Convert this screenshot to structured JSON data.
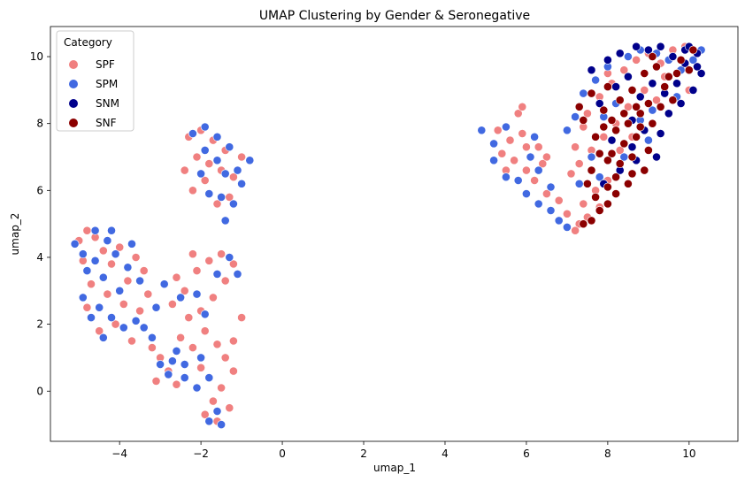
{
  "chart_data": {
    "type": "scatter",
    "title": "UMAP Clustering by Gender & Seronegative",
    "xlabel": "umap_1",
    "ylabel": "umap_2",
    "xlim": [
      -5.7,
      11.2
    ],
    "ylim": [
      -1.5,
      10.9
    ],
    "xticks": [
      -4,
      -2,
      0,
      2,
      4,
      6,
      8,
      10
    ],
    "yticks": [
      0,
      2,
      4,
      6,
      8,
      10
    ],
    "grid": false,
    "legend": {
      "title": "Category",
      "placement": "top-left"
    },
    "series": [
      {
        "name": "SPF",
        "color": "#F08080",
        "points": [
          [
            -5.0,
            4.5
          ],
          [
            -4.8,
            4.8
          ],
          [
            -4.6,
            4.6
          ],
          [
            -4.4,
            4.2
          ],
          [
            -4.0,
            4.3
          ],
          [
            -3.6,
            4.0
          ],
          [
            -3.4,
            3.6
          ],
          [
            -4.2,
            3.8
          ],
          [
            -4.7,
            3.2
          ],
          [
            -4.3,
            2.9
          ],
          [
            -3.9,
            2.6
          ],
          [
            -3.5,
            2.4
          ],
          [
            -4.1,
            2.0
          ],
          [
            -4.5,
            1.8
          ],
          [
            -3.7,
            1.5
          ],
          [
            -3.2,
            1.3
          ],
          [
            -3.0,
            1.0
          ],
          [
            -2.8,
            0.6
          ],
          [
            -2.6,
            0.2
          ],
          [
            -3.1,
            0.3
          ],
          [
            -4.8,
            2.5
          ],
          [
            -4.9,
            3.9
          ],
          [
            -3.3,
            2.9
          ],
          [
            -3.8,
            3.3
          ],
          [
            -2.6,
            3.4
          ],
          [
            -2.4,
            3.0
          ],
          [
            -2.1,
            3.6
          ],
          [
            -1.8,
            3.9
          ],
          [
            -1.5,
            4.1
          ],
          [
            -1.2,
            3.8
          ],
          [
            -1.4,
            3.3
          ],
          [
            -1.7,
            2.8
          ],
          [
            -2.0,
            2.4
          ],
          [
            -2.3,
            2.2
          ],
          [
            -1.9,
            1.8
          ],
          [
            -1.6,
            1.4
          ],
          [
            -1.4,
            1.0
          ],
          [
            -1.2,
            0.6
          ],
          [
            -1.5,
            0.1
          ],
          [
            -1.7,
            -0.3
          ],
          [
            -1.9,
            -0.7
          ],
          [
            -1.6,
            -0.9
          ],
          [
            -1.3,
            -0.5
          ],
          [
            -2.2,
            1.3
          ],
          [
            -2.5,
            1.6
          ],
          [
            -2.0,
            0.7
          ],
          [
            -1.0,
            2.2
          ],
          [
            -1.2,
            1.5
          ],
          [
            -2.7,
            2.6
          ],
          [
            -2.2,
            4.1
          ],
          [
            -2.3,
            7.6
          ],
          [
            -2.0,
            7.8
          ],
          [
            -1.7,
            7.5
          ],
          [
            -1.4,
            7.2
          ],
          [
            -2.1,
            7.0
          ],
          [
            -1.8,
            6.8
          ],
          [
            -1.5,
            6.6
          ],
          [
            -1.2,
            6.4
          ],
          [
            -2.4,
            6.6
          ],
          [
            -1.9,
            6.3
          ],
          [
            -1.3,
            5.8
          ],
          [
            -1.6,
            5.6
          ],
          [
            -1.0,
            7.0
          ],
          [
            -2.2,
            6.0
          ],
          [
            5.3,
            7.8
          ],
          [
            5.6,
            7.5
          ],
          [
            5.9,
            7.7
          ],
          [
            5.4,
            7.1
          ],
          [
            5.7,
            6.9
          ],
          [
            6.0,
            6.6
          ],
          [
            5.5,
            6.6
          ],
          [
            6.3,
            7.3
          ],
          [
            6.5,
            7.0
          ],
          [
            6.2,
            6.3
          ],
          [
            6.5,
            5.9
          ],
          [
            6.8,
            5.7
          ],
          [
            6.4,
            6.8
          ],
          [
            6.0,
            7.3
          ],
          [
            5.8,
            8.3
          ],
          [
            5.9,
            8.5
          ],
          [
            7.0,
            5.3
          ],
          [
            7.3,
            5.0
          ],
          [
            7.5,
            5.2
          ],
          [
            7.8,
            5.5
          ],
          [
            7.2,
            4.8
          ],
          [
            7.7,
            6.0
          ],
          [
            8.0,
            6.3
          ],
          [
            7.4,
            5.6
          ],
          [
            7.1,
            6.5
          ],
          [
            7.3,
            6.8
          ],
          [
            7.6,
            7.2
          ],
          [
            7.9,
            7.6
          ],
          [
            8.2,
            8.0
          ],
          [
            8.5,
            8.5
          ],
          [
            7.5,
            8.3
          ],
          [
            7.8,
            8.8
          ],
          [
            8.1,
            9.2
          ],
          [
            8.4,
            9.6
          ],
          [
            8.7,
            9.9
          ],
          [
            9.0,
            10.1
          ],
          [
            9.3,
            9.8
          ],
          [
            9.6,
            10.2
          ],
          [
            9.9,
            10.3
          ],
          [
            8.9,
            9.0
          ],
          [
            9.2,
            8.7
          ],
          [
            8.3,
            7.2
          ],
          [
            8.6,
            7.6
          ],
          [
            7.4,
            7.9
          ],
          [
            8.0,
            9.5
          ],
          [
            9.4,
            9.4
          ],
          [
            10.0,
            9.0
          ],
          [
            7.2,
            7.3
          ]
        ]
      },
      {
        "name": "SPM",
        "color": "#4169E1",
        "points": [
          [
            -5.1,
            4.4
          ],
          [
            -4.9,
            4.1
          ],
          [
            -4.6,
            3.9
          ],
          [
            -4.3,
            4.5
          ],
          [
            -4.1,
            4.1
          ],
          [
            -3.8,
            3.7
          ],
          [
            -4.4,
            3.4
          ],
          [
            -4.8,
            3.6
          ],
          [
            -4.9,
            2.8
          ],
          [
            -4.5,
            2.5
          ],
          [
            -4.2,
            2.2
          ],
          [
            -3.9,
            1.9
          ],
          [
            -3.6,
            2.1
          ],
          [
            -4.7,
            2.2
          ],
          [
            -4.4,
            1.6
          ],
          [
            -3.4,
            1.9
          ],
          [
            -3.2,
            1.6
          ],
          [
            -3.0,
            0.8
          ],
          [
            -2.8,
            0.5
          ],
          [
            -2.4,
            0.4
          ],
          [
            -2.7,
            0.9
          ],
          [
            -3.5,
            3.3
          ],
          [
            -4.0,
            3.0
          ],
          [
            -3.1,
            2.5
          ],
          [
            -2.9,
            3.2
          ],
          [
            -2.5,
            2.8
          ],
          [
            -2.1,
            2.9
          ],
          [
            -1.6,
            3.5
          ],
          [
            -1.3,
            4.0
          ],
          [
            -1.1,
            3.5
          ],
          [
            -2.0,
            1.0
          ],
          [
            -1.8,
            0.4
          ],
          [
            -1.6,
            -0.6
          ],
          [
            -1.5,
            -1.0
          ],
          [
            -1.8,
            -0.9
          ],
          [
            -2.1,
            0.1
          ],
          [
            -2.4,
            0.8
          ],
          [
            -2.6,
            1.2
          ],
          [
            -1.9,
            2.3
          ],
          [
            -4.6,
            4.8
          ],
          [
            -4.2,
            4.8
          ],
          [
            -3.7,
            4.4
          ],
          [
            -2.2,
            7.7
          ],
          [
            -1.9,
            7.9
          ],
          [
            -1.6,
            7.6
          ],
          [
            -1.3,
            7.3
          ],
          [
            -1.9,
            7.2
          ],
          [
            -1.6,
            6.9
          ],
          [
            -1.4,
            6.5
          ],
          [
            -1.1,
            6.6
          ],
          [
            -2.0,
            6.5
          ],
          [
            -1.8,
            5.9
          ],
          [
            -1.5,
            5.8
          ],
          [
            -1.2,
            5.6
          ],
          [
            -1.4,
            5.1
          ],
          [
            -0.8,
            6.9
          ],
          [
            -1.0,
            6.2
          ],
          [
            4.9,
            7.8
          ],
          [
            5.2,
            7.4
          ],
          [
            5.5,
            7.9
          ],
          [
            5.2,
            6.9
          ],
          [
            5.5,
            6.4
          ],
          [
            5.8,
            6.3
          ],
          [
            6.1,
            7.0
          ],
          [
            6.3,
            6.6
          ],
          [
            6.0,
            5.9
          ],
          [
            6.3,
            5.6
          ],
          [
            6.6,
            5.4
          ],
          [
            6.6,
            6.1
          ],
          [
            6.2,
            7.6
          ],
          [
            6.8,
            5.1
          ],
          [
            7.0,
            4.9
          ],
          [
            7.3,
            6.2
          ],
          [
            7.0,
            7.8
          ],
          [
            7.2,
            8.2
          ],
          [
            7.4,
            8.9
          ],
          [
            7.7,
            9.3
          ],
          [
            8.0,
            9.7
          ],
          [
            8.5,
            10.0
          ],
          [
            8.8,
            10.2
          ],
          [
            9.2,
            10.1
          ],
          [
            9.5,
            9.9
          ],
          [
            9.8,
            9.6
          ],
          [
            8.2,
            8.6
          ],
          [
            7.9,
            8.2
          ],
          [
            8.8,
            8.1
          ],
          [
            9.1,
            8.4
          ],
          [
            10.1,
            9.9
          ],
          [
            10.3,
            10.2
          ],
          [
            9.7,
            8.8
          ],
          [
            7.6,
            7.0
          ],
          [
            8.4,
            7.0
          ],
          [
            7.8,
            6.4
          ],
          [
            9.0,
            7.5
          ]
        ]
      },
      {
        "name": "SNM",
        "color": "#00008B",
        "points": [
          [
            7.6,
            9.6
          ],
          [
            8.0,
            9.9
          ],
          [
            8.3,
            10.1
          ],
          [
            8.7,
            10.3
          ],
          [
            9.0,
            10.2
          ],
          [
            9.3,
            10.3
          ],
          [
            9.6,
            10.0
          ],
          [
            9.9,
            9.8
          ],
          [
            10.2,
            10.1
          ],
          [
            10.3,
            9.5
          ],
          [
            9.7,
            9.2
          ],
          [
            9.4,
            8.9
          ],
          [
            9.1,
            9.2
          ],
          [
            8.8,
            8.8
          ],
          [
            8.5,
            9.4
          ],
          [
            8.2,
            9.1
          ],
          [
            9.5,
            8.3
          ],
          [
            9.8,
            8.6
          ],
          [
            10.1,
            9.0
          ],
          [
            8.9,
            7.8
          ],
          [
            8.6,
            7.3
          ],
          [
            9.2,
            7.0
          ],
          [
            8.3,
            6.6
          ],
          [
            7.9,
            6.2
          ],
          [
            8.6,
            8.1
          ],
          [
            9.9,
            10.2
          ],
          [
            10.0,
            10.3
          ],
          [
            7.8,
            8.6
          ],
          [
            8.1,
            7.5
          ],
          [
            9.3,
            7.7
          ],
          [
            8.7,
            6.9
          ],
          [
            10.2,
            9.7
          ]
        ]
      },
      {
        "name": "SNF",
        "color": "#8B0000",
        "points": [
          [
            7.4,
            5.0
          ],
          [
            7.6,
            5.1
          ],
          [
            7.8,
            5.4
          ],
          [
            8.0,
            5.6
          ],
          [
            7.7,
            5.8
          ],
          [
            8.0,
            6.1
          ],
          [
            8.2,
            6.4
          ],
          [
            8.5,
            6.2
          ],
          [
            8.3,
            6.8
          ],
          [
            8.6,
            7.0
          ],
          [
            8.9,
            6.6
          ],
          [
            8.1,
            7.1
          ],
          [
            8.4,
            7.4
          ],
          [
            8.7,
            7.6
          ],
          [
            9.0,
            7.2
          ],
          [
            8.2,
            7.8
          ],
          [
            8.5,
            8.0
          ],
          [
            8.8,
            8.3
          ],
          [
            9.1,
            8.0
          ],
          [
            7.9,
            8.4
          ],
          [
            8.3,
            8.7
          ],
          [
            8.6,
            9.0
          ],
          [
            9.0,
            8.6
          ],
          [
            9.3,
            8.5
          ],
          [
            7.6,
            8.9
          ],
          [
            8.0,
            9.1
          ],
          [
            8.9,
            9.5
          ],
          [
            9.2,
            9.7
          ],
          [
            9.5,
            9.4
          ],
          [
            9.8,
            9.9
          ],
          [
            10.1,
            10.2
          ],
          [
            7.4,
            8.1
          ],
          [
            7.7,
            7.6
          ],
          [
            8.0,
            6.9
          ],
          [
            7.6,
            6.6
          ],
          [
            8.8,
            7.9
          ],
          [
            9.4,
            9.1
          ],
          [
            9.7,
            9.5
          ],
          [
            7.3,
            8.5
          ],
          [
            9.1,
            10.0
          ],
          [
            8.4,
            8.3
          ],
          [
            8.7,
            8.5
          ],
          [
            7.8,
            7.1
          ],
          [
            8.2,
            5.9
          ],
          [
            7.5,
            6.2
          ],
          [
            9.6,
            8.7
          ],
          [
            10.0,
            9.6
          ],
          [
            8.1,
            8.1
          ],
          [
            7.9,
            7.9
          ],
          [
            8.6,
            6.5
          ]
        ]
      }
    ]
  }
}
